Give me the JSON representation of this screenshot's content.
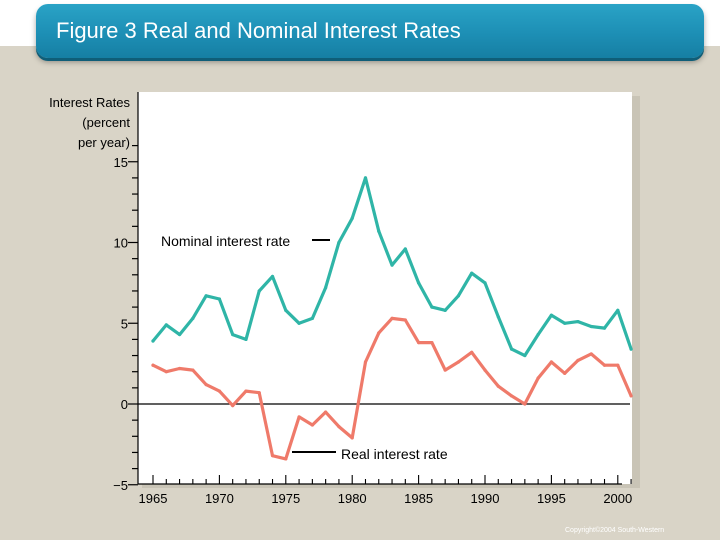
{
  "title": "Figure 3 Real and Nominal Interest Rates",
  "copyright": "Copyright©2004 South-Western",
  "colors": {
    "banner": "#1d8fb5",
    "nominal": "#2fb5a7",
    "real": "#ef7a6a",
    "background": "#d9d4c7"
  },
  "chart_data": {
    "type": "line",
    "ylabel": [
      "Interest Rates",
      "(percent",
      "per year)"
    ],
    "ylim": [
      -5,
      16
    ],
    "xlim": [
      1965,
      2002
    ],
    "y_ticks": [
      15,
      10,
      5,
      0,
      -5
    ],
    "y_tick_labels": [
      "15",
      "10",
      "5",
      "0",
      "−5"
    ],
    "x_ticks": [
      1965,
      1970,
      1975,
      1980,
      1985,
      1990,
      1995,
      2000
    ],
    "x_tick_labels": [
      "1965",
      "1970",
      "1975",
      "1980",
      "1985",
      "1990",
      "1995",
      "2000"
    ],
    "series": [
      {
        "name": "Nominal interest rate",
        "color": "#2fb5a7",
        "x": [
          1965,
          1966,
          1967,
          1968,
          1969,
          1970,
          1971,
          1972,
          1973,
          1974,
          1975,
          1976,
          1977,
          1978,
          1979,
          1980,
          1981,
          1982,
          1983,
          1984,
          1985,
          1986,
          1987,
          1988,
          1989,
          1990,
          1991,
          1992,
          1993,
          1994,
          1995,
          1996,
          1997,
          1998,
          1999,
          2000,
          2001
        ],
        "y": [
          3.9,
          4.9,
          4.3,
          5.3,
          6.7,
          6.5,
          4.3,
          4.0,
          7.0,
          7.9,
          5.8,
          5.0,
          5.3,
          7.2,
          10.0,
          11.5,
          14.0,
          10.7,
          8.6,
          9.6,
          7.5,
          6.0,
          5.8,
          6.7,
          8.1,
          7.5,
          5.4,
          3.4,
          3.0,
          4.3,
          5.5,
          5.0,
          5.1,
          4.8,
          4.7,
          5.8,
          3.4
        ]
      },
      {
        "name": "Real interest rate",
        "color": "#ef7a6a",
        "x": [
          1965,
          1966,
          1967,
          1968,
          1969,
          1970,
          1971,
          1972,
          1973,
          1974,
          1975,
          1976,
          1977,
          1978,
          1979,
          1980,
          1981,
          1982,
          1983,
          1984,
          1985,
          1986,
          1987,
          1988,
          1989,
          1990,
          1991,
          1992,
          1993,
          1994,
          1995,
          1996,
          1997,
          1998,
          1999,
          2000,
          2001
        ],
        "y": [
          2.4,
          2.0,
          2.2,
          2.1,
          1.2,
          0.8,
          -0.1,
          0.8,
          0.7,
          -3.2,
          -3.4,
          -0.8,
          -1.3,
          -0.5,
          -1.4,
          -2.1,
          2.6,
          4.4,
          5.3,
          5.2,
          3.8,
          3.8,
          2.1,
          2.6,
          3.2,
          2.1,
          1.1,
          0.5,
          0.0,
          1.6,
          2.6,
          1.9,
          2.7,
          3.1,
          2.4,
          2.4,
          0.5
        ]
      }
    ],
    "annotations": [
      {
        "text": "Nominal interest rate",
        "series": 0
      },
      {
        "text": "Real interest rate",
        "series": 1
      }
    ]
  }
}
